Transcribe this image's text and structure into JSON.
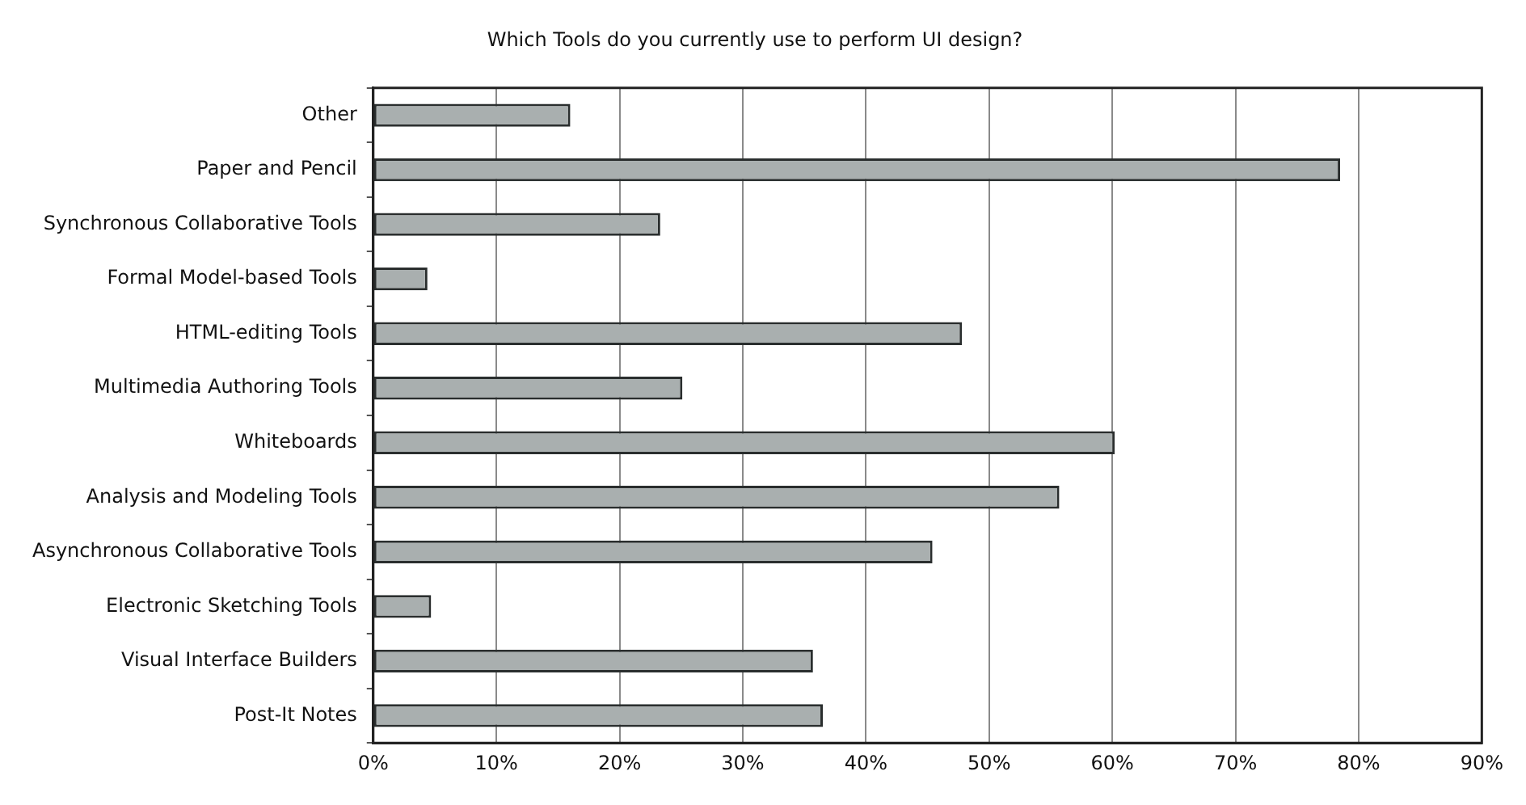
{
  "chart_data": {
    "type": "bar",
    "orientation": "horizontal",
    "title": "Which Tools do you currently use to perform UI design?",
    "categories": [
      "Other",
      "Paper and Pencil",
      "Synchronous Collaborative Tools",
      "Formal Model-based Tools",
      "HTML-editing Tools",
      "Multimedia Authoring Tools",
      "Whiteboards",
      "Analysis and Modeling Tools",
      "Asynchronous Collaborative Tools",
      "Electronic Sketching Tools",
      "Visual Interface Builders",
      "Post-It Notes"
    ],
    "values": [
      16,
      78.5,
      23.3,
      4.4,
      47.8,
      25.1,
      60.2,
      55.7,
      45.4,
      4.7,
      35.7,
      36.5
    ],
    "color": "#a9afaf",
    "xlim": [
      0,
      90
    ],
    "xticks": [
      {
        "value": 0,
        "label": "0%"
      },
      {
        "value": 10,
        "label": "10%"
      },
      {
        "value": 20,
        "label": "20%"
      },
      {
        "value": 30,
        "label": "30%"
      },
      {
        "value": 40,
        "label": "40%"
      },
      {
        "value": 50,
        "label": "50%"
      },
      {
        "value": 60,
        "label": "60%"
      },
      {
        "value": 70,
        "label": "70%"
      },
      {
        "value": 80,
        "label": "80%"
      },
      {
        "value": 90,
        "label": "90%"
      }
    ],
    "grid": "x",
    "legend": false
  }
}
